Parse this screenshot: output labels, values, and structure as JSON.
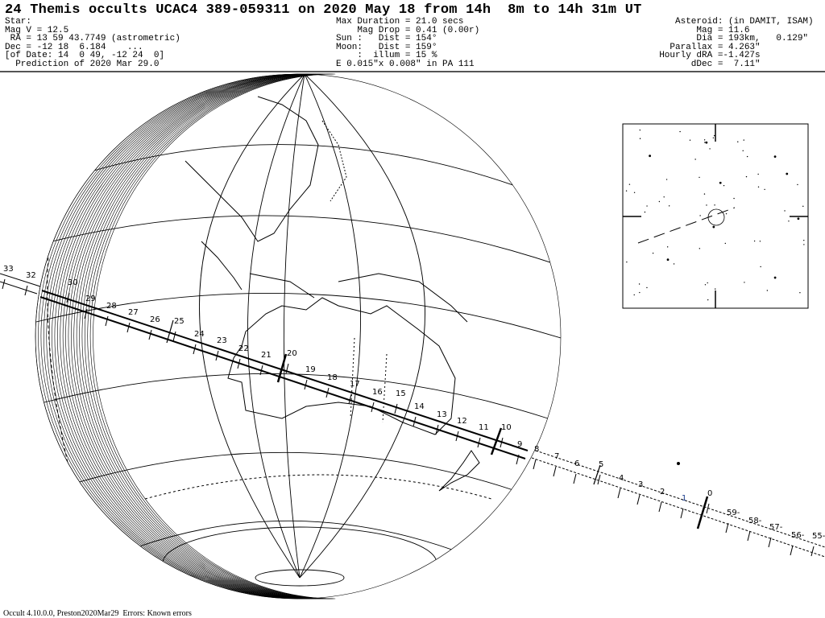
{
  "header": {
    "title": "24 Themis occults UCAC4 389-059311 on 2020 May 18 from 14h  8m to 14h 31m UT",
    "star": [
      "Star:",
      "Mag V = 12.5",
      " RA = 13 59 43.7749 (astrometric)",
      "Dec = -12 18  6.184    ...",
      "[of Date: 14  0 49, -12 24  0]",
      "  Prediction of 2020 Mar 29.0"
    ],
    "event": [
      "Max Duration = 21.0 secs",
      "    Mag Drop = 0.41 (0.00r)",
      "Sun :   Dist = 154°",
      "Moon:   Dist = 159°",
      "    :  illum = 15 %",
      "E 0.015\"x 0.008\" in PA 111"
    ],
    "asteroid": [
      "     Asteroid: (in DAMIT, ISAM)",
      "         Mag = 11.6",
      "         Dia = 193km,   0.129\"",
      "    Parallax = 4.263\"",
      "  Hourly dRA =-1.427s",
      "        dDec =  7.11\""
    ]
  },
  "path_time_labels": [
    "33",
    "32",
    "30",
    "29",
    "28",
    "27",
    "26",
    "25",
    "24",
    "23",
    "22",
    "21",
    "20",
    "19",
    "18",
    "17",
    "16",
    "15",
    "14",
    "13",
    "12",
    "11",
    "10",
    "9",
    "8",
    "7",
    "6",
    "5",
    "4",
    "3",
    "2",
    "1",
    "0",
    "59-",
    "58-",
    "57-",
    "56-",
    "55-"
  ],
  "footer": "Occult 4.10.0.0, Preston2020Mar29  Errors: Known errors",
  "colors": {
    "ink": "#000000",
    "label_blue": "#1a3c8c"
  }
}
